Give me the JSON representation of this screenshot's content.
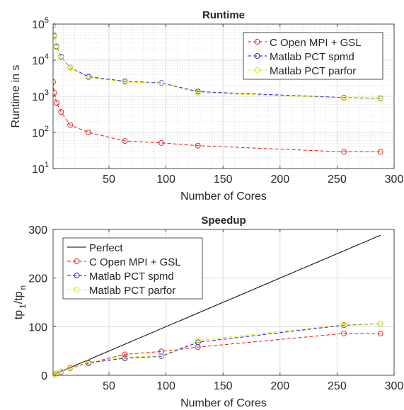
{
  "chart_data": [
    {
      "type": "line",
      "title": "Runtime",
      "xlabel": "Number of Cores",
      "ylabel": "Runtime in s",
      "yscale": "log",
      "xlim": [
        1,
        300
      ],
      "ylim": [
        10,
        100000
      ],
      "grid": "on (major and minor)",
      "legend_placement": "top-right",
      "x_ticks": [
        "50",
        "100",
        "150",
        "200",
        "250",
        "300"
      ],
      "y_tick_labels": [
        {
          "v": 10,
          "base": "10",
          "exp": "1"
        },
        {
          "v": 100,
          "base": "10",
          "exp": "2"
        },
        {
          "v": 1000,
          "base": "10",
          "exp": "3"
        },
        {
          "v": 10000,
          "base": "10",
          "exp": "4"
        },
        {
          "v": 100000,
          "base": "10",
          "exp": "5"
        }
      ],
      "x": [
        1,
        2,
        4,
        8,
        16,
        32,
        64,
        96,
        128,
        256,
        288
      ],
      "series": [
        {
          "name": "C Open MPI + GSL",
          "color": "#e8161b",
          "values": [
            2500,
            1250,
            660,
            370,
            160,
            100,
            58,
            51,
            43,
            29,
            29
          ]
        },
        {
          "name": "Matlab PCT spmd",
          "color": "#1b1bd8",
          "values": [
            90000,
            48000,
            24000,
            12500,
            6200,
            3500,
            2600,
            2350,
            1350,
            920,
            880
          ]
        },
        {
          "name": "Matlab PCT parfor",
          "color": "#e8e600",
          "values": [
            90000,
            46000,
            23000,
            12000,
            6100,
            3300,
            2500,
            2300,
            1250,
            900,
            860
          ]
        }
      ]
    },
    {
      "type": "line",
      "title": "Speedup",
      "xlabel": "Number of Cores",
      "ylabel": "tp_1/tp_n",
      "ylabel_parts": {
        "a": "tp",
        "sub1": "1",
        "mid": "/tp",
        "sub2": "n"
      },
      "xlim": [
        1,
        300
      ],
      "ylim": [
        0,
        300
      ],
      "grid": "on",
      "legend_placement": "top-left",
      "x_ticks": [
        "50",
        "100",
        "150",
        "200",
        "250",
        "300"
      ],
      "y_ticks": [
        "0",
        "100",
        "200",
        "300"
      ],
      "x": [
        1,
        2,
        4,
        8,
        16,
        32,
        64,
        96,
        128,
        256,
        288
      ],
      "series": [
        {
          "name": "Perfect",
          "color": "#000000",
          "markers": false,
          "x": [
            1,
            288
          ],
          "values": [
            1,
            288
          ]
        },
        {
          "name": "C Open MPI + GSL",
          "color": "#e8161b",
          "values": [
            1,
            2,
            3.8,
            6.8,
            15.6,
            25,
            43,
            49,
            58,
            86,
            86
          ]
        },
        {
          "name": "Matlab PCT spmd",
          "color": "#1b1bd8",
          "values": [
            1,
            1.9,
            3.8,
            7.2,
            14.5,
            25.7,
            35,
            39,
            68,
            103,
            106
          ]
        },
        {
          "name": "Matlab PCT parfor",
          "color": "#e8e600",
          "values": [
            1,
            2,
            3.9,
            7.5,
            14.8,
            27,
            37,
            40,
            72,
            104,
            106
          ]
        }
      ]
    }
  ]
}
